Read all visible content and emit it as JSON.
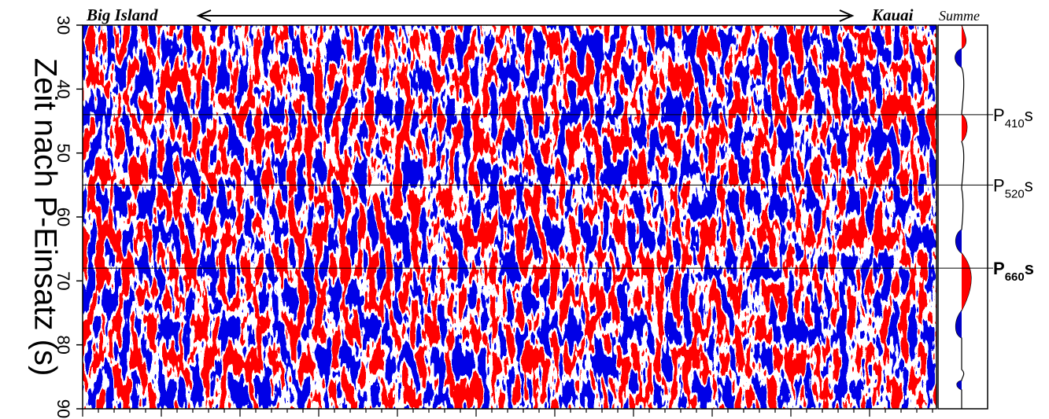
{
  "chart_data": {
    "type": "seismic-section",
    "ylabel": "Zeit nach P-Einsatz (s)",
    "ylim": [
      30,
      90
    ],
    "yticks": [
      30,
      40,
      50,
      60,
      70,
      80,
      90
    ],
    "left_label": "Big Island",
    "right_label": "Kauai",
    "stack_label": "Summe",
    "phases": [
      {
        "time": 44,
        "name": "P",
        "sub": "410",
        "suffix": "s"
      },
      {
        "time": 55,
        "name": "P",
        "sub": "520",
        "suffix": "s"
      },
      {
        "time": 68,
        "name": "P",
        "sub": "660",
        "suffix": "s"
      }
    ],
    "colors": {
      "positive": "#ff0000",
      "negative": "#0000c8"
    }
  }
}
